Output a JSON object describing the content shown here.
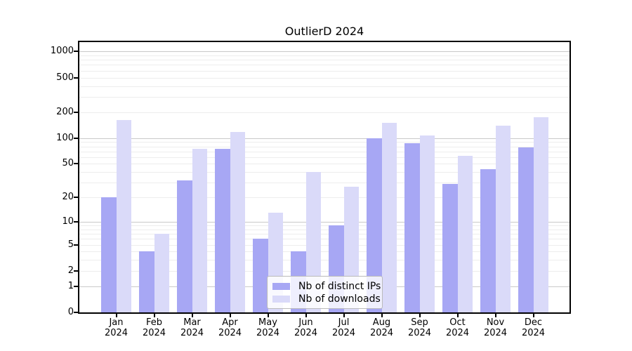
{
  "title": "OutlierD 2024",
  "chart_data": {
    "type": "bar",
    "title": "OutlierD 2024",
    "categories": [
      "Jan 2024",
      "Feb 2024",
      "Mar 2024",
      "Apr 2024",
      "May 2024",
      "Jun 2024",
      "Jul 2024",
      "Aug 2024",
      "Sep 2024",
      "Oct 2024",
      "Nov 2024",
      "Dec 2024"
    ],
    "series": [
      {
        "name": "Nb of distinct IPs",
        "color": "#a7a7f4",
        "values": [
          20,
          4,
          32,
          75,
          6,
          4,
          9,
          100,
          87,
          29,
          43,
          78
        ]
      },
      {
        "name": "Nb of downloads",
        "color": "#dadaf9",
        "values": [
          161,
          7,
          75,
          118,
          13,
          40,
          27,
          150,
          107,
          62,
          139,
          174
        ]
      }
    ],
    "xlabel": "",
    "ylabel": "",
    "y_scale": "log10(1+v)",
    "y_ticks": [
      0,
      1,
      2,
      5,
      10,
      20,
      50,
      100,
      200,
      500,
      1000
    ],
    "ylim": [
      0,
      1280
    ],
    "grid": "horizontal major and minor gridlines",
    "legend_position": "lower center"
  },
  "colors": {
    "background": "#ffffff",
    "bar_distinct_ips": "#a7a7f4",
    "bar_downloads": "#dadaf9",
    "grid_major": "#c9c9c9",
    "grid_minor": "#ededed",
    "axis": "#000000",
    "text": "#000000"
  }
}
